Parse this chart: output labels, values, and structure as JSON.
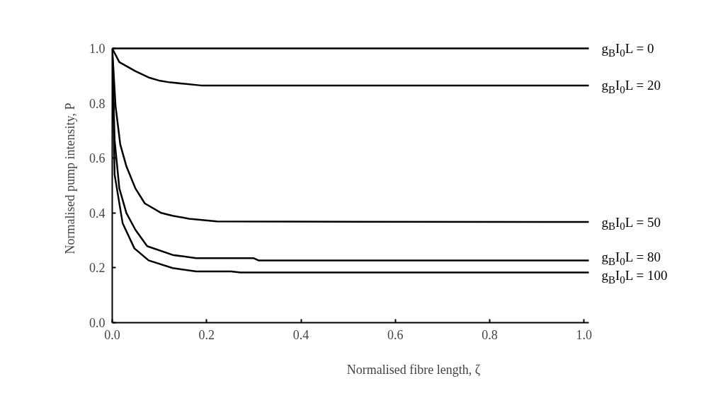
{
  "chart_data": {
    "type": "line",
    "xlabel": "Normalised fibre length, ζ",
    "ylabel": "Normalised pump intensity, P",
    "xlim": [
      0,
      1.01
    ],
    "ylim": [
      0,
      1.0
    ],
    "xticks": [
      {
        "value": 0,
        "label": "0.0"
      },
      0.2,
      0.4,
      0.6,
      0.8,
      {
        "value": 1,
        "label": "1.0"
      }
    ],
    "yticks": [
      {
        "value": 0,
        "label": "0.0"
      },
      0.2,
      0.4,
      0.6,
      0.8,
      {
        "value": 1,
        "label": "1.0"
      }
    ],
    "grid": false,
    "marker": "none",
    "line_style": "solid",
    "series": [
      {
        "name": "g$_{B}$I$_{0}$L = 0",
        "color": "#000000",
        "x": [
          0,
          1.01
        ],
        "values": [
          1.0,
          1.0
        ]
      },
      {
        "name": "g$_{B}$I$_{0}$L =  20",
        "color": "#000000",
        "x": [
          0,
          0.015,
          0.049,
          0.079,
          0.099,
          0.123,
          0.153,
          0.188,
          1.01
        ],
        "values": [
          1.0,
          0.95,
          0.917,
          0.893,
          0.883,
          0.876,
          0.871,
          0.865,
          0.865
        ]
      },
      {
        "name": "g$_{B}$I$_{0}$L =  50",
        "color": "#000000",
        "x": [
          0,
          0.007,
          0.017,
          0.03,
          0.049,
          0.069,
          0.104,
          0.128,
          0.163,
          0.222,
          1.01
        ],
        "values": [
          1.0,
          0.79,
          0.65,
          0.57,
          0.49,
          0.435,
          0.4,
          0.39,
          0.379,
          0.369,
          0.367
        ]
      },
      {
        "name": "g$_{B}$I$_{0}$L =  80",
        "color": "#000000",
        "x": [
          0,
          0.005,
          0.015,
          0.03,
          0.049,
          0.074,
          0.128,
          0.178,
          0.3,
          0.31,
          1.01
        ],
        "values": [
          1.0,
          0.666,
          0.49,
          0.4,
          0.339,
          0.279,
          0.247,
          0.235,
          0.235,
          0.227,
          0.227
        ]
      },
      {
        "name": "g$_{B}$I$_{0}$L =  100",
        "color": "#000000",
        "x": [
          0,
          0.005,
          0.022,
          0.047,
          0.077,
          0.128,
          0.178,
          0.252,
          0.272,
          1.01
        ],
        "values": [
          1.0,
          0.54,
          0.363,
          0.271,
          0.227,
          0.199,
          0.187,
          0.187,
          0.183,
          0.183
        ]
      }
    ]
  }
}
